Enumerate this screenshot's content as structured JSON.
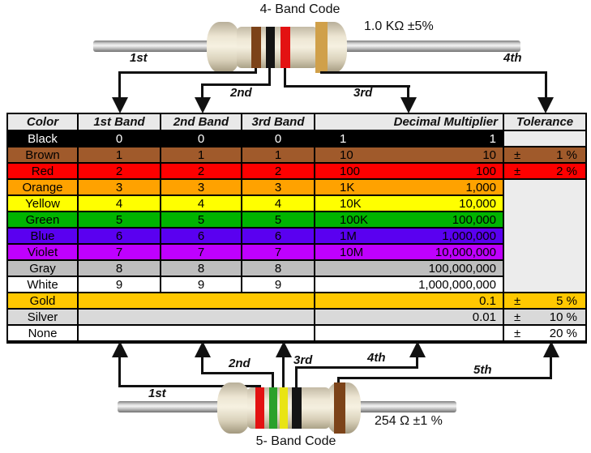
{
  "top_section": {
    "title": "4- Band Code",
    "value_label": "1.0 KΩ  ±5%",
    "arrow_labels": [
      "1st",
      "2nd",
      "3rd",
      "4th"
    ],
    "resistor_bands": [
      "brown",
      "black",
      "red",
      "gold"
    ]
  },
  "bottom_section": {
    "title": "5- Band Code",
    "value_label": "254 Ω  ±1 %",
    "arrow_labels": [
      "1st",
      "2nd",
      "3rd",
      "4th",
      "5th"
    ],
    "resistor_bands": [
      "red",
      "green",
      "yellow",
      "black",
      "brown"
    ]
  },
  "band_colors": {
    "brown": "#7c4319",
    "black": "#141414",
    "red": "#e31212",
    "gold": "#d0a04a",
    "green": "#2ba12b",
    "yellow": "#e9e414"
  },
  "table": {
    "headers": [
      "Color",
      "1st Band",
      "2nd Band",
      "3rd Band",
      "Decimal Multiplier",
      "Tolerance"
    ],
    "header_bg": "#e9e9e9",
    "empty_tolerance_bg": "#ececec",
    "rows": [
      {
        "name": "Black",
        "bg": "#000000",
        "fg": "#ffffff",
        "bands": [
          "0",
          "0",
          "0"
        ],
        "mult_short": "1",
        "mult_full": "1",
        "tol": "empty"
      },
      {
        "name": "Brown",
        "bg": "#a05a2b",
        "fg": "#000000",
        "bands": [
          "1",
          "1",
          "1"
        ],
        "mult_short": "10",
        "mult_full": "10",
        "tol": "value",
        "tol_sign": "±",
        "tol_val": "1 %"
      },
      {
        "name": "Red",
        "bg": "#fe0000",
        "fg": "#000000",
        "bands": [
          "2",
          "2",
          "2"
        ],
        "mult_short": "100",
        "mult_full": "100",
        "tol": "value",
        "tol_sign": "±",
        "tol_val": "2 %"
      },
      {
        "name": "Orange",
        "bg": "#ffa200",
        "fg": "#000000",
        "bands": [
          "3",
          "3",
          "3"
        ],
        "mult_short": "1K",
        "mult_full": "1,000",
        "tol": "merged"
      },
      {
        "name": "Yellow",
        "bg": "#ffff00",
        "fg": "#000000",
        "bands": [
          "4",
          "4",
          "4"
        ],
        "mult_short": "10K",
        "mult_full": "10,000",
        "tol": "none"
      },
      {
        "name": "Green",
        "bg": "#00b400",
        "fg": "#000000",
        "bands": [
          "5",
          "5",
          "5"
        ],
        "mult_short": "100K",
        "mult_full": "100,000",
        "tol": "none"
      },
      {
        "name": "Blue",
        "bg": "#5a00f0",
        "fg": "#000000",
        "bands": [
          "6",
          "6",
          "6"
        ],
        "mult_short": "1M",
        "mult_full": "1,000,000",
        "tol": "none"
      },
      {
        "name": "Violet",
        "bg": "#bf00ff",
        "fg": "#000000",
        "bands": [
          "7",
          "7",
          "7"
        ],
        "mult_short": "10M",
        "mult_full": "10,000,000",
        "tol": "none"
      },
      {
        "name": "Gray",
        "bg": "#bebebe",
        "fg": "#000000",
        "bands": [
          "8",
          "8",
          "8"
        ],
        "mult_short": "",
        "mult_full": "100,000,000",
        "tol": "none"
      },
      {
        "name": "White",
        "bg": "#ffffff",
        "fg": "#000000",
        "bands": [
          "9",
          "9",
          "9"
        ],
        "mult_short": "",
        "mult_full": "1,000,000,000",
        "tol": "none"
      },
      {
        "name": "Gold",
        "bg": "#ffc800",
        "fg": "#000000",
        "merged_bands": true,
        "mult_short": "",
        "mult_full": "0.1",
        "tol": "value",
        "tol_sign": "±",
        "tol_val": "5 %"
      },
      {
        "name": "Silver",
        "bg": "#d9d9d9",
        "fg": "#000000",
        "merged_bands": true,
        "mult_short": "",
        "mult_full": "0.01",
        "tol": "value",
        "tol_sign": "±",
        "tol_val": "10 %"
      },
      {
        "name": "None",
        "bg": "#ffffff",
        "fg": "#000000",
        "merged_bands": true,
        "mult_short": "",
        "mult_full": "",
        "tol": "value",
        "tol_sign": "±",
        "tol_val": "20 %"
      }
    ]
  }
}
